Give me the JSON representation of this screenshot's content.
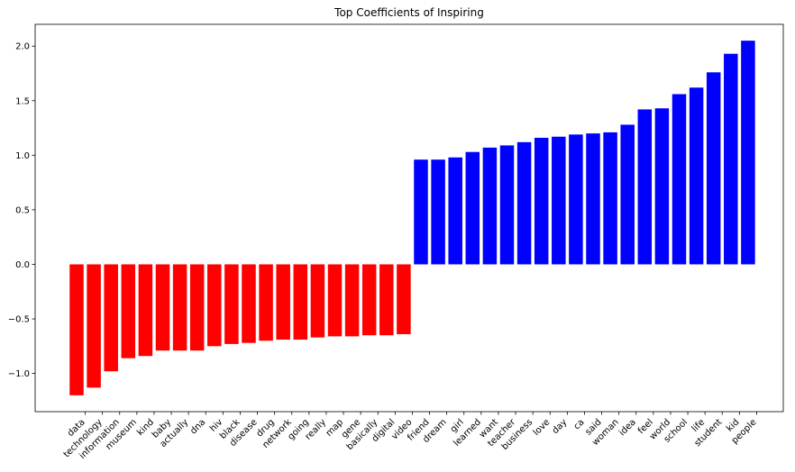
{
  "chart_data": {
    "type": "bar",
    "title": "Top Coefficients of Inspiring",
    "xlabel": "",
    "ylabel": "",
    "ylim": [
      -1.35,
      2.2
    ],
    "yticks": [
      -1.0,
      -0.5,
      0.0,
      0.5,
      1.0,
      1.5,
      2.0
    ],
    "ytick_labels": [
      "−1.0",
      "−0.5",
      "0.0",
      "0.5",
      "1.0",
      "1.5",
      "2.0"
    ],
    "grid": false,
    "colors": {
      "negative": "#ff0000",
      "positive": "#0000ff"
    },
    "categories": [
      "data",
      "technology",
      "information",
      "museum",
      "kind",
      "baby",
      "actually",
      "dna",
      "hiv",
      "black",
      "disease",
      "drug",
      "network",
      "going",
      "really",
      "map",
      "gene",
      "basically",
      "digital",
      "video",
      "friend",
      "dream",
      "girl",
      "learned",
      "want",
      "teacher",
      "business",
      "love",
      "day",
      "ca",
      "said",
      "woman",
      "idea",
      "feel",
      "world",
      "school",
      "life",
      "student",
      "kid",
      "people"
    ],
    "values": [
      -1.2,
      -1.13,
      -0.98,
      -0.86,
      -0.84,
      -0.79,
      -0.79,
      -0.79,
      -0.75,
      -0.73,
      -0.72,
      -0.7,
      -0.69,
      -0.69,
      -0.67,
      -0.66,
      -0.66,
      -0.65,
      -0.65,
      -0.64,
      0.96,
      0.96,
      0.98,
      1.03,
      1.07,
      1.09,
      1.12,
      1.16,
      1.17,
      1.19,
      1.2,
      1.21,
      1.28,
      1.42,
      1.43,
      1.56,
      1.62,
      1.76,
      1.93,
      2.05
    ]
  }
}
